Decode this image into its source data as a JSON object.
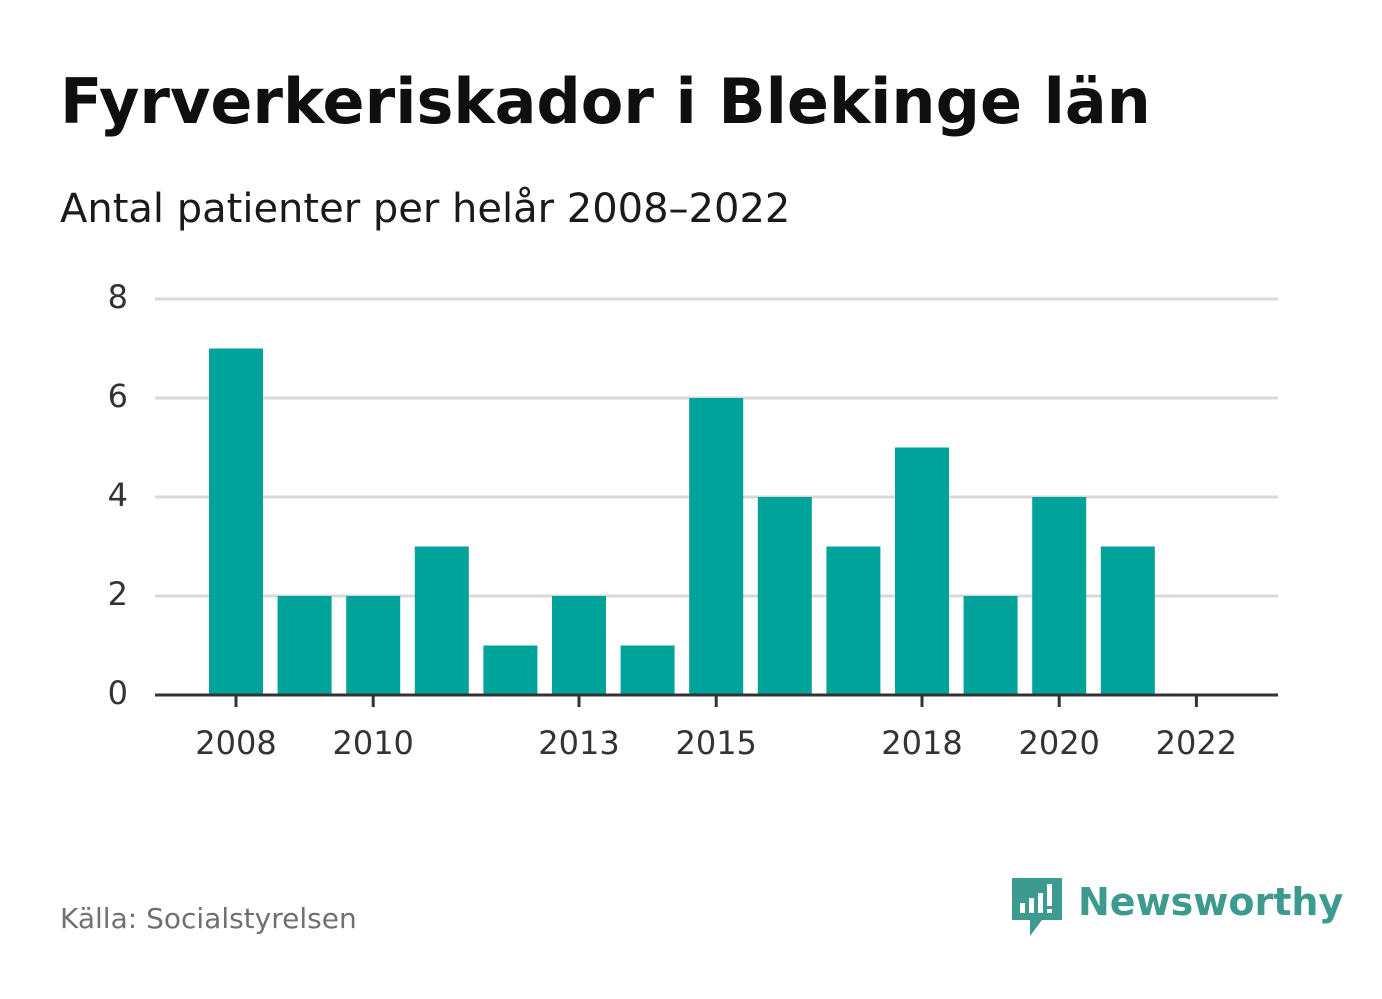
{
  "title": "Fyrverkeriskador i Blekinge län",
  "subtitle": "Antal patienter per helår 2008–2022",
  "source": "Källa: Socialstyrelsen",
  "brand": {
    "name": "Newsworthy",
    "color": "#3d9a8e",
    "icon": "newsworthy-bar-chart-bubble-icon"
  },
  "colors": {
    "bar": "#00a399",
    "grid": "#d9d9d9",
    "axis": "#333333",
    "tick_text": "#333333"
  },
  "chart_data": {
    "type": "bar",
    "categories": [
      "2008",
      "2009",
      "2010",
      "2011",
      "2012",
      "2013",
      "2014",
      "2015",
      "2016",
      "2017",
      "2018",
      "2019",
      "2020",
      "2021",
      "2022"
    ],
    "values": [
      7,
      2,
      2,
      3,
      1,
      2,
      1,
      6,
      4,
      3,
      5,
      2,
      4,
      3,
      0
    ],
    "x_tick_labels": [
      "2008",
      "",
      "2010",
      "",
      "",
      "2013",
      "",
      "2015",
      "",
      "",
      "2018",
      "",
      "2020",
      "",
      "2022"
    ],
    "y_ticks": [
      "0",
      "2",
      "4",
      "6",
      "8"
    ],
    "ylim": [
      0,
      8
    ],
    "xlabel": "",
    "ylabel": "",
    "grid": true,
    "legend": "none"
  }
}
